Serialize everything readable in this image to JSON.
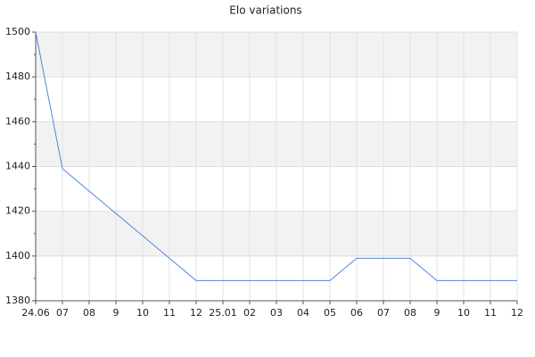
{
  "chart_data": {
    "type": "line",
    "title": "Elo variations",
    "categories": [
      "24.06",
      "07",
      "08",
      "9",
      "10",
      "11",
      "12",
      "25.01",
      "02",
      "03",
      "04",
      "05",
      "06",
      "07",
      "08",
      "9",
      "10",
      "11",
      "12"
    ],
    "series": [
      {
        "name": "Elo",
        "color": "#4f86d9",
        "values": [
          1500,
          1439,
          1429,
          1419,
          1409,
          1399,
          1389,
          1389,
          1389,
          1389,
          1389,
          1389,
          1399,
          1399,
          1399,
          1389,
          1389,
          1389,
          1389
        ]
      }
    ],
    "ylim": [
      1380,
      1500
    ],
    "yticks": [
      1380,
      1400,
      1420,
      1440,
      1460,
      1480,
      1500
    ],
    "grid": true
  }
}
